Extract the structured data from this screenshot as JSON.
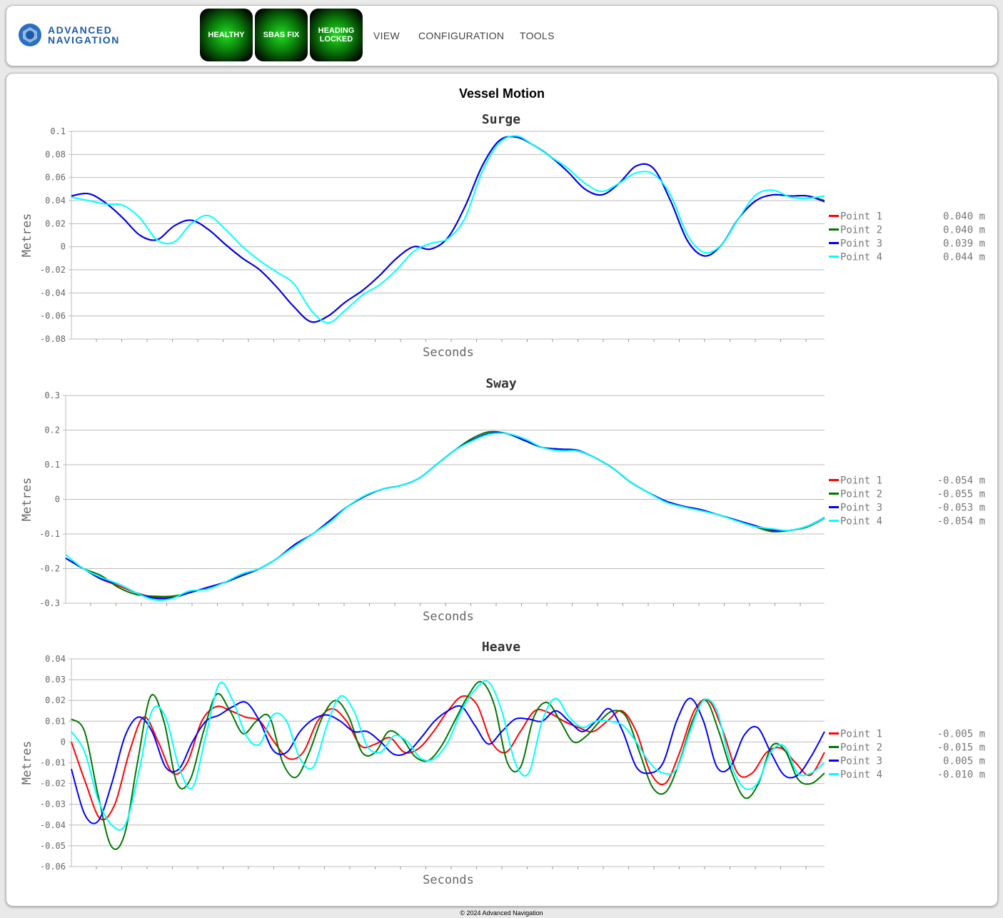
{
  "header": {
    "logo_text_1": "ADVANCED",
    "logo_text_2": "NAVIGATION",
    "status": [
      {
        "label": "HEALTHY"
      },
      {
        "label": "SBAS FIX"
      },
      {
        "label": "HEADING LOCKED"
      }
    ],
    "nav": [
      {
        "label": "VIEW"
      },
      {
        "label": "CONFIGURATION"
      },
      {
        "label": "TOOLS"
      }
    ]
  },
  "page_title": "Vessel Motion",
  "footer": "© 2024 Advanced Navigation",
  "colors": {
    "Point 1": "#ff0000",
    "Point 2": "#007700",
    "Point 3": "#0000ff",
    "Point 4": "#00ffff"
  },
  "chart_data": [
    {
      "type": "line",
      "title": "Surge",
      "xlabel": "Seconds",
      "ylabel": "Metres",
      "ylim": [
        -0.08,
        0.1
      ],
      "yticks": [
        "0.1",
        "0.08",
        "0.06",
        "0.04",
        "0.02",
        "0",
        "-0.02",
        "-0.04",
        "-0.06",
        "-0.08"
      ],
      "grid": true,
      "legend": "right",
      "series": [
        {
          "name": "Point 1",
          "readout": "0.040 m",
          "values": [
            0.044,
            0.046,
            0.038,
            0.025,
            0.01,
            0.006,
            0.018,
            0.023,
            0.015,
            0.002,
            -0.01,
            -0.02,
            -0.035,
            -0.052,
            -0.065,
            -0.06,
            -0.048,
            -0.038,
            -0.025,
            -0.01,
            0,
            -0.002,
            0.008,
            0.035,
            0.07,
            0.092,
            0.095,
            0.088,
            0.078,
            0.065,
            0.05,
            0.045,
            0.055,
            0.07,
            0.068,
            0.04,
            0.005,
            -0.008,
            0.002,
            0.025,
            0.04,
            0.045,
            0.044,
            0.044,
            0.04
          ]
        },
        {
          "name": "Point 2",
          "readout": "0.040 m",
          "values": [
            0.044,
            0.046,
            0.038,
            0.025,
            0.01,
            0.006,
            0.018,
            0.023,
            0.015,
            0.002,
            -0.01,
            -0.02,
            -0.035,
            -0.052,
            -0.065,
            -0.06,
            -0.048,
            -0.038,
            -0.025,
            -0.01,
            0,
            -0.002,
            0.008,
            0.035,
            0.07,
            0.092,
            0.095,
            0.088,
            0.078,
            0.065,
            0.05,
            0.045,
            0.055,
            0.07,
            0.068,
            0.04,
            0.005,
            -0.008,
            0.002,
            0.025,
            0.04,
            0.045,
            0.044,
            0.044,
            0.04
          ]
        },
        {
          "name": "Point 3",
          "readout": "0.039 m",
          "values": [
            0.044,
            0.046,
            0.038,
            0.025,
            0.01,
            0.006,
            0.018,
            0.023,
            0.015,
            0.002,
            -0.01,
            -0.02,
            -0.035,
            -0.052,
            -0.065,
            -0.06,
            -0.048,
            -0.038,
            -0.025,
            -0.01,
            0,
            -0.002,
            0.008,
            0.035,
            0.07,
            0.092,
            0.095,
            0.088,
            0.078,
            0.065,
            0.05,
            0.045,
            0.055,
            0.07,
            0.068,
            0.04,
            0.005,
            -0.008,
            0.002,
            0.025,
            0.04,
            0.045,
            0.044,
            0.044,
            0.039
          ]
        },
        {
          "name": "Point 4",
          "readout": "0.044 m",
          "values": [
            0.043,
            0.04,
            0.037,
            0.036,
            0.025,
            0.006,
            0.004,
            0.02,
            0.027,
            0.015,
            0,
            -0.012,
            -0.022,
            -0.032,
            -0.055,
            -0.066,
            -0.055,
            -0.042,
            -0.033,
            -0.02,
            -0.004,
            0.003,
            0.007,
            0.025,
            0.065,
            0.09,
            0.096,
            0.088,
            0.078,
            0.068,
            0.055,
            0.048,
            0.055,
            0.064,
            0.063,
            0.045,
            0.01,
            -0.005,
            0.002,
            0.025,
            0.045,
            0.049,
            0.043,
            0.042,
            0.044
          ]
        }
      ]
    },
    {
      "type": "line",
      "title": "Sway",
      "xlabel": "Seconds",
      "ylabel": "Metres",
      "ylim": [
        -0.3,
        0.3
      ],
      "yticks": [
        "0.3",
        "0.2",
        "0.1",
        "0",
        "-0.1",
        "-0.2",
        "-0.3"
      ],
      "grid": true,
      "legend": "right",
      "series": [
        {
          "name": "Point 1",
          "readout": "-0.054 m",
          "values": [
            -0.17,
            -0.2,
            -0.23,
            -0.25,
            -0.27,
            -0.283,
            -0.283,
            -0.27,
            -0.255,
            -0.24,
            -0.22,
            -0.2,
            -0.17,
            -0.13,
            -0.1,
            -0.06,
            -0.02,
            0.01,
            0.03,
            0.04,
            0.06,
            0.1,
            0.14,
            0.17,
            0.19,
            0.19,
            0.17,
            0.15,
            0.145,
            0.14,
            0.12,
            0.09,
            0.05,
            0.02,
            -0.005,
            -0.02,
            -0.03,
            -0.045,
            -0.06,
            -0.075,
            -0.09,
            -0.09,
            -0.08,
            -0.054
          ]
        },
        {
          "name": "Point 2",
          "readout": "-0.055 m",
          "values": [
            -0.17,
            -0.2,
            -0.22,
            -0.255,
            -0.275,
            -0.28,
            -0.28,
            -0.27,
            -0.255,
            -0.24,
            -0.22,
            -0.2,
            -0.17,
            -0.13,
            -0.1,
            -0.06,
            -0.02,
            0.01,
            0.03,
            0.04,
            0.06,
            0.1,
            0.14,
            0.175,
            0.195,
            0.19,
            0.17,
            0.15,
            0.145,
            0.14,
            0.12,
            0.09,
            0.05,
            0.02,
            -0.005,
            -0.02,
            -0.03,
            -0.045,
            -0.06,
            -0.078,
            -0.093,
            -0.09,
            -0.08,
            -0.055
          ]
        },
        {
          "name": "Point 3",
          "readout": "-0.053 m",
          "values": [
            -0.17,
            -0.2,
            -0.23,
            -0.245,
            -0.27,
            -0.285,
            -0.285,
            -0.27,
            -0.255,
            -0.24,
            -0.22,
            -0.2,
            -0.17,
            -0.13,
            -0.1,
            -0.06,
            -0.02,
            0.01,
            0.03,
            0.04,
            0.06,
            0.1,
            0.14,
            0.17,
            0.19,
            0.19,
            0.17,
            0.15,
            0.145,
            0.142,
            0.12,
            0.09,
            0.05,
            0.02,
            -0.005,
            -0.02,
            -0.03,
            -0.045,
            -0.06,
            -0.075,
            -0.088,
            -0.09,
            -0.078,
            -0.053
          ]
        },
        {
          "name": "Point 4",
          "readout": "-0.054 m",
          "values": [
            -0.16,
            -0.2,
            -0.225,
            -0.245,
            -0.27,
            -0.29,
            -0.287,
            -0.265,
            -0.26,
            -0.24,
            -0.215,
            -0.2,
            -0.17,
            -0.135,
            -0.1,
            -0.065,
            -0.02,
            0.012,
            0.03,
            0.04,
            0.06,
            0.1,
            0.14,
            0.168,
            0.188,
            0.19,
            0.175,
            0.15,
            0.14,
            0.14,
            0.12,
            0.09,
            0.05,
            0.02,
            -0.008,
            -0.022,
            -0.033,
            -0.045,
            -0.062,
            -0.078,
            -0.085,
            -0.09,
            -0.078,
            -0.054
          ]
        }
      ]
    },
    {
      "type": "line",
      "title": "Heave",
      "xlabel": "Seconds",
      "ylabel": "Metres",
      "ylim": [
        -0.06,
        0.04
      ],
      "yticks": [
        "0.04",
        "0.03",
        "0.02",
        "0.01",
        "0",
        "-0.01",
        "-0.02",
        "-0.03",
        "-0.04",
        "-0.05",
        "-0.06"
      ],
      "grid": true,
      "legend": "right",
      "series": [
        {
          "name": "Point 1",
          "readout": "-0.005 m",
          "values": [
            0,
            -0.02,
            -0.037,
            -0.03,
            -0.005,
            0.012,
            0,
            -0.015,
            -0.01,
            0.01,
            0.017,
            0.015,
            0.012,
            0.01,
            0,
            -0.008,
            -0.005,
            0.01,
            0.016,
            0.01,
            -0.002,
            -0.001,
            0.002,
            -0.005,
            -0.003,
            0.005,
            0.015,
            0.022,
            0.018,
            0,
            -0.005,
            0.005,
            0.015,
            0.014,
            0.01,
            0.007,
            0.005,
            0.01,
            0.015,
            0.005,
            -0.015,
            -0.02,
            -0.005,
            0.015,
            0.02,
            0.005,
            -0.015,
            -0.015,
            -0.005,
            -0.003,
            -0.01,
            -0.016,
            -0.005
          ]
        },
        {
          "name": "Point 2",
          "readout": "-0.015 m",
          "values": [
            0.011,
            0.005,
            -0.025,
            -0.05,
            -0.045,
            -0.01,
            0.022,
            0.01,
            -0.02,
            -0.018,
            0.005,
            0.023,
            0.015,
            0.004,
            0.01,
            0.012,
            -0.01,
            -0.017,
            -0.005,
            0.012,
            0.02,
            0.012,
            -0.005,
            -0.005,
            0.005,
            0.002,
            -0.007,
            -0.009,
            -0.002,
            0.01,
            0.022,
            0.029,
            0.018,
            -0.01,
            -0.012,
            0.012,
            0.019,
            0.01,
            0,
            0.003,
            0.01,
            0.015,
            0.012,
            -0.005,
            -0.022,
            -0.024,
            -0.01,
            0.01,
            0.02,
            0.005,
            -0.015,
            -0.027,
            -0.02,
            -0.002,
            -0.004,
            -0.018,
            -0.02,
            -0.015
          ]
        },
        {
          "name": "Point 3",
          "readout": "0.005 m",
          "values": [
            -0.013,
            -0.035,
            -0.038,
            -0.02,
            0.003,
            0.012,
            0.005,
            -0.012,
            -0.013,
            0,
            0.01,
            0.013,
            0.017,
            0.019,
            0.01,
            -0.004,
            -0.005,
            0.005,
            0.011,
            0.013,
            0.01,
            0.005,
            0.005,
            0,
            -0.006,
            -0.005,
            0.002,
            0.01,
            0.015,
            0.017,
            0.008,
            -0.001,
            0.005,
            0.011,
            0.011,
            0.01,
            0.015,
            0.01,
            0.005,
            0.01,
            0.016,
            0.005,
            -0.012,
            -0.015,
            -0.01,
            0.01,
            0.021,
            0.01,
            -0.012,
            -0.012,
            0.003,
            0.007,
            -0.005,
            -0.016,
            -0.016,
            -0.007,
            0.005
          ]
        },
        {
          "name": "Point 4",
          "readout": "-0.010 m",
          "values": [
            0.005,
            -0.005,
            -0.028,
            -0.04,
            -0.04,
            -0.015,
            0.015,
            0.012,
            -0.012,
            -0.022,
            0.003,
            0.028,
            0.02,
            0.003,
            -0.001,
            0.013,
            0.01,
            -0.008,
            -0.012,
            0.008,
            0.022,
            0.015,
            -0.002,
            -0.005,
            0.003,
            0,
            -0.008,
            -0.008,
            0,
            0.015,
            0.025,
            0.029,
            0.015,
            -0.01,
            -0.015,
            0.01,
            0.021,
            0.012,
            0.007,
            0.01,
            0.01,
            0.008,
            0,
            -0.01,
            -0.015,
            -0.013,
            0.005,
            0.02,
            0.015,
            -0.01,
            -0.022,
            -0.02,
            -0.005,
            -0.002,
            -0.015,
            -0.015,
            -0.01
          ]
        }
      ]
    }
  ]
}
